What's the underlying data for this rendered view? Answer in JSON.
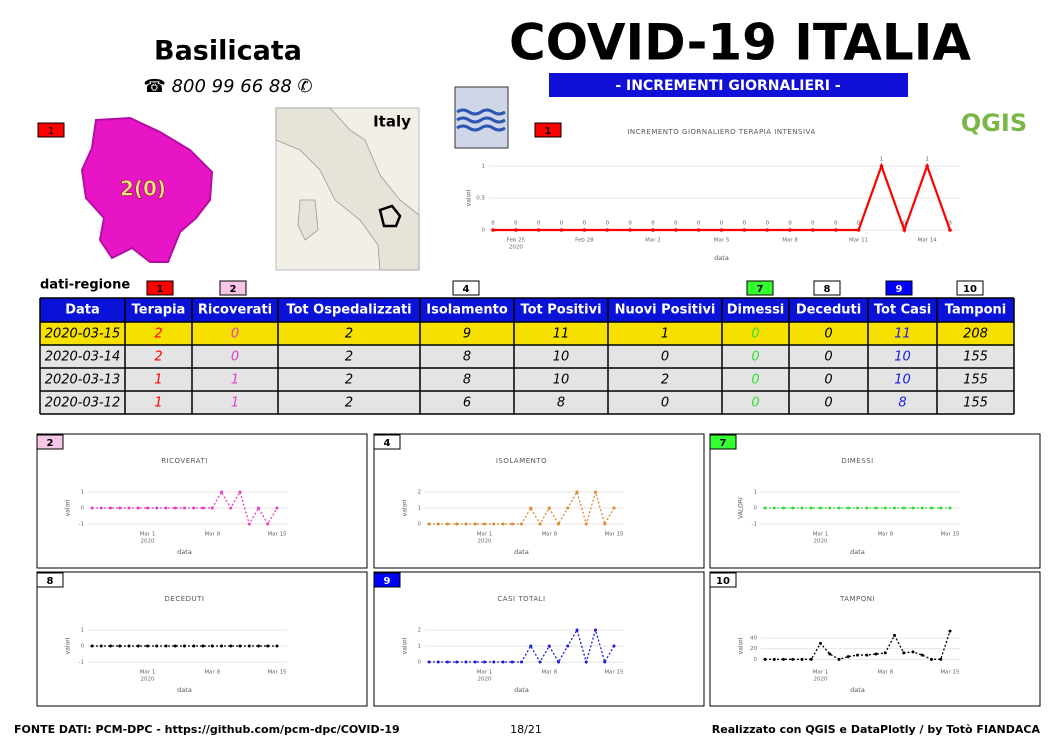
{
  "header": {
    "region": "Basilicata",
    "phone": "☎ 800 99 66 88 ✆",
    "title": "COVID-19 ITALIA",
    "subtitle": "- INCREMENTI GIORNALIERI -",
    "logo": "QGIS"
  },
  "map": {
    "badge": "1",
    "label": "2(0)",
    "inset_label": "Italy"
  },
  "table": {
    "caption": "dati-regione",
    "badges": [
      {
        "label": "1",
        "color": "#ff0000"
      },
      {
        "label": "2",
        "color": "#f7c6e6"
      },
      {
        "label": "4",
        "color": "#ffffff"
      },
      {
        "label": "7",
        "color": "#33ff33"
      },
      {
        "label": "8",
        "color": "#ffffff"
      },
      {
        "label": "9",
        "color": "#0000ff"
      },
      {
        "label": "10",
        "color": "#ffffff"
      }
    ],
    "header": [
      "Data",
      "Terapia",
      "Ricoverati",
      "Tot Ospedalizzati",
      "Isolamento",
      "Tot Positivi",
      "Nuovi Positivi",
      "Dimessi",
      "Deceduti",
      "Tot Casi",
      "Tamponi"
    ],
    "column_colors": [
      "#000000",
      "#ff0000",
      "#e83ec0",
      "#000000",
      "#000000",
      "#000000",
      "#000000",
      "#33dd33",
      "#000000",
      "#1a1ae6",
      "#000000"
    ],
    "rows": [
      [
        "2020-03-15",
        "2",
        "0",
        "2",
        "9",
        "11",
        "1",
        "0",
        "0",
        "11",
        "208"
      ],
      [
        "2020-03-14",
        "2",
        "0",
        "2",
        "8",
        "10",
        "0",
        "0",
        "0",
        "10",
        "155"
      ],
      [
        "2020-03-13",
        "1",
        "1",
        "2",
        "8",
        "10",
        "2",
        "0",
        "0",
        "10",
        "155"
      ],
      [
        "2020-03-12",
        "1",
        "1",
        "2",
        "6",
        "8",
        "0",
        "0",
        "0",
        "8",
        "155"
      ]
    ]
  },
  "charts": [
    {
      "type": "line",
      "badge": "1",
      "badge_color": "#ff0000",
      "title": "INCREMENTO GIORNALIERO TERAPIA INTENSIVA",
      "ylabel": "valori",
      "xlabel": "data",
      "year": "2020",
      "color": "#ff0000",
      "show_values": true,
      "categories": [
        null,
        "Feb 25",
        null,
        null,
        "Feb 28",
        null,
        null,
        "Mar 2",
        null,
        null,
        "Mar 5",
        null,
        null,
        "Mar 8",
        null,
        null,
        "Mar 11",
        null,
        null,
        "Mar 14",
        null
      ],
      "values": [
        0,
        0,
        0,
        0,
        0,
        0,
        0,
        0,
        0,
        0,
        0,
        0,
        0,
        0,
        0,
        0,
        0,
        1,
        0,
        1,
        0
      ],
      "ylim": [
        0,
        1
      ],
      "yticks": [
        0,
        0.5,
        1
      ]
    },
    {
      "type": "line",
      "badge": "2",
      "badge_color": "#f7c6e6",
      "title": "RICOVERATI",
      "ylabel": "valori",
      "xlabel": "data",
      "year": "2020",
      "color": "#e83ec0",
      "categories": [
        null,
        null,
        null,
        null,
        null,
        null,
        "Mar 1",
        null,
        null,
        null,
        null,
        null,
        null,
        "Mar 8",
        null,
        null,
        null,
        null,
        null,
        null,
        "Mar 15"
      ],
      "values": [
        0,
        0,
        0,
        0,
        0,
        0,
        0,
        0,
        0,
        0,
        0,
        0,
        0,
        0,
        1,
        0,
        1,
        -1,
        0,
        -1,
        0
      ],
      "ylim": [
        -1,
        1
      ],
      "yticks": [
        -1,
        0,
        1
      ]
    },
    {
      "type": "line",
      "badge": "4",
      "badge_color": "#ffffff",
      "title": "ISOLAMENTO",
      "ylabel": "valori",
      "xlabel": "data",
      "year": "2020",
      "color": "#d98a2b",
      "categories": [
        null,
        null,
        null,
        null,
        null,
        null,
        "Mar 1",
        null,
        null,
        null,
        null,
        null,
        null,
        "Mar 8",
        null,
        null,
        null,
        null,
        null,
        null,
        "Mar 15"
      ],
      "values": [
        0,
        0,
        0,
        0,
        0,
        0,
        0,
        0,
        0,
        0,
        0,
        1,
        0,
        1,
        0,
        1,
        2,
        0,
        2,
        0,
        1
      ],
      "ylim": [
        0,
        2
      ],
      "yticks": [
        0,
        1,
        2
      ]
    },
    {
      "type": "line",
      "badge": "7",
      "badge_color": "#33ff33",
      "title": "DIMESSI",
      "ylabel": "VALORI",
      "xlabel": "data",
      "year": "2020",
      "color": "#33dd33",
      "categories": [
        null,
        null,
        null,
        null,
        null,
        null,
        "Mar 1",
        null,
        null,
        null,
        null,
        null,
        null,
        "Mar 8",
        null,
        null,
        null,
        null,
        null,
        null,
        "Mar 15"
      ],
      "values": [
        0,
        0,
        0,
        0,
        0,
        0,
        0,
        0,
        0,
        0,
        0,
        0,
        0,
        0,
        0,
        0,
        0,
        0,
        0,
        0,
        0
      ],
      "ylim": [
        -1,
        1
      ],
      "yticks": [
        -1,
        0,
        1
      ]
    },
    {
      "type": "line",
      "badge": "8",
      "badge_color": "#ffffff",
      "title": "DECEDUTI",
      "ylabel": "valori",
      "xlabel": "data",
      "year": "2020",
      "color": "#000000",
      "categories": [
        null,
        null,
        null,
        null,
        null,
        null,
        "Mar 1",
        null,
        null,
        null,
        null,
        null,
        null,
        "Mar 8",
        null,
        null,
        null,
        null,
        null,
        null,
        "Mar 15"
      ],
      "values": [
        0,
        0,
        0,
        0,
        0,
        0,
        0,
        0,
        0,
        0,
        0,
        0,
        0,
        0,
        0,
        0,
        0,
        0,
        0,
        0,
        0
      ],
      "ylim": [
        -1,
        1
      ],
      "yticks": [
        -1,
        0,
        1
      ]
    },
    {
      "type": "line",
      "badge": "9",
      "badge_color": "#0000ff",
      "title": "CASI TOTALI",
      "ylabel": "valori",
      "xlabel": "data",
      "year": "2020",
      "color": "#1a1ae6",
      "categories": [
        null,
        null,
        null,
        null,
        null,
        null,
        "Mar 1",
        null,
        null,
        null,
        null,
        null,
        null,
        "Mar 8",
        null,
        null,
        null,
        null,
        null,
        null,
        "Mar 15"
      ],
      "values": [
        0,
        0,
        0,
        0,
        0,
        0,
        0,
        0,
        0,
        0,
        0,
        1,
        0,
        1,
        0,
        1,
        2,
        0,
        2,
        0,
        1
      ],
      "ylim": [
        0,
        2
      ],
      "yticks": [
        0,
        1,
        2
      ]
    },
    {
      "type": "line",
      "badge": "10",
      "badge_color": "#ffffff",
      "title": "TAMPONI",
      "ylabel": "valori",
      "xlabel": "data",
      "year": "2020",
      "color": "#000000",
      "categories": [
        null,
        null,
        null,
        null,
        null,
        null,
        "Mar 1",
        null,
        null,
        null,
        null,
        null,
        null,
        "Mar 8",
        null,
        null,
        null,
        null,
        null,
        null,
        "Mar 15"
      ],
      "values": [
        0,
        0,
        0,
        0,
        0,
        0,
        30,
        10,
        0,
        5,
        8,
        8,
        10,
        12,
        45,
        12,
        14,
        8,
        0,
        0,
        53
      ],
      "ylim": [
        -5,
        55
      ],
      "yticks": [
        0,
        20,
        40
      ]
    }
  ],
  "footer": {
    "source": "FONTE DATI: PCM-DPC - https://github.com/pcm-dpc/COVID-19",
    "page": "18/21",
    "credits": "Realizzato con QGIS e DataPlotly / by Totò FIANDACA"
  }
}
